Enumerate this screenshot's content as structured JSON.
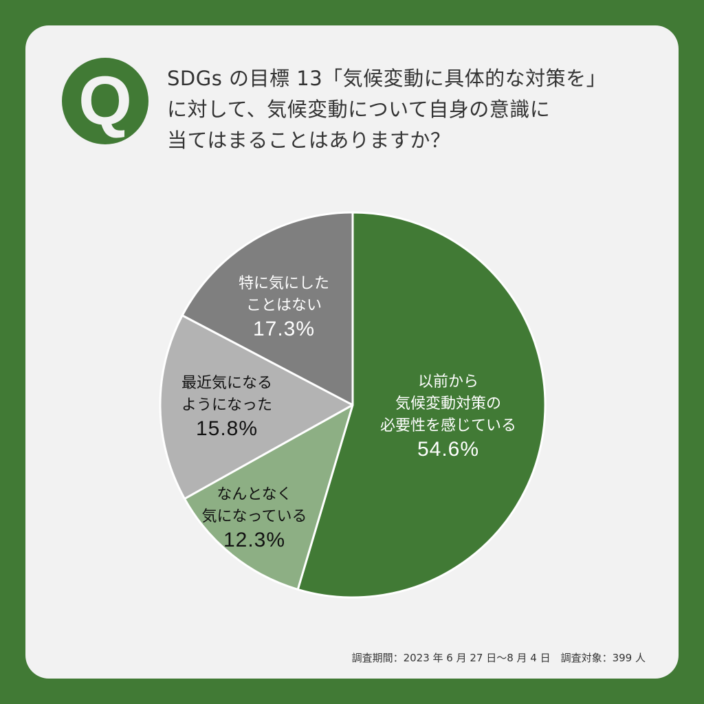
{
  "header": {
    "badge": "Q",
    "title_lines": [
      "SDGs の目標 13「気候変動に具体的な対策を」",
      "に対して、気候変動について自身の意識に",
      "当てはまることはありますか？"
    ]
  },
  "colors": {
    "frame": "#417a35",
    "panel": "#f2f2f2",
    "slice_1": "#417a35",
    "slice_2": "#8daf84",
    "slice_3": "#b3b3b3",
    "slice_4": "#7f7f7f"
  },
  "chart_data": {
    "type": "pie",
    "title": "SDGs の目標 13「気候変動に具体的な対策を」に対して、気候変動について自身の意識に当てはまることはありますか？",
    "start_angle": "12 o'clock",
    "direction": "clockwise",
    "categories": [
      "以前から気候変動対策の必要性を感じている",
      "なんとなく気になっている",
      "最近気になるようになった",
      "特に気にしたことはない"
    ],
    "values": [
      54.6,
      12.3,
      15.8,
      17.3
    ],
    "unit": "%",
    "colors": [
      "#417a35",
      "#8daf84",
      "#b3b3b3",
      "#7f7f7f"
    ],
    "legend": "none (labels inside slices)"
  },
  "slices": [
    {
      "lines": [
        "以前から",
        "気候変動対策の",
        "必要性を感じている"
      ],
      "pct": "54.6%"
    },
    {
      "lines": [
        "なんとなく",
        "気になっている"
      ],
      "pct": "12.3%"
    },
    {
      "lines": [
        "最近気になる",
        "ようになった"
      ],
      "pct": "15.8%"
    },
    {
      "lines": [
        "特に気にした",
        "ことはない"
      ],
      "pct": "17.3%"
    }
  ],
  "footer": {
    "survey_info": "調査期間：2023 年 6 月 27 日〜8 月 4 日　調査対象：399 人"
  }
}
